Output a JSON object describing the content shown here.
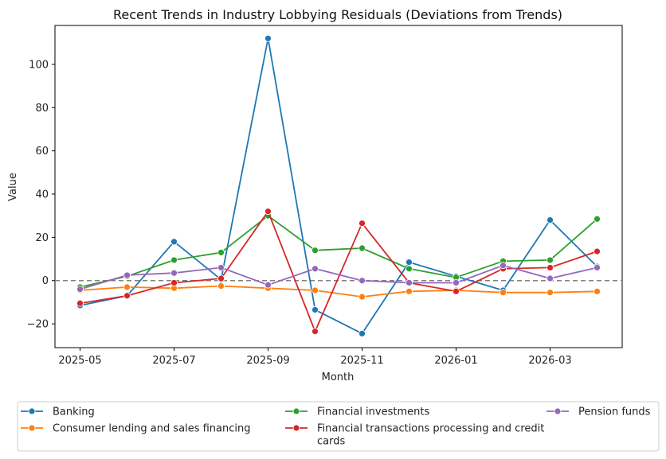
{
  "chart_data": {
    "type": "line",
    "title": "Recent Trends in Industry Lobbying Residuals (Deviations from Trends)",
    "xlabel": "Month",
    "ylabel": "Value",
    "x": [
      "2025-05",
      "2025-06",
      "2025-07",
      "2025-08",
      "2025-09",
      "2025-10",
      "2025-11",
      "2025-12",
      "2026-01",
      "2026-02",
      "2026-03",
      "2026-04"
    ],
    "x_ticks": [
      "2025-05",
      "2025-07",
      "2025-09",
      "2025-11",
      "2026-01",
      "2026-03"
    ],
    "y_ticks": [
      -20,
      0,
      20,
      40,
      60,
      80,
      100
    ],
    "ylim": [
      -31,
      118
    ],
    "reference_line": {
      "y": 0,
      "style": "dashed",
      "color": "#808080"
    },
    "grid": false,
    "legend_position": "bottom",
    "series": [
      {
        "name": "Banking",
        "color": "#1f77b4",
        "values": [
          -11.5,
          -7.0,
          18.0,
          0.5,
          112.0,
          -13.5,
          -24.5,
          8.5,
          2.0,
          -4.5,
          28.0,
          6.5
        ]
      },
      {
        "name": "Consumer lending and sales financing",
        "color": "#ff7f0e",
        "values": [
          -4.5,
          -3.0,
          -3.5,
          -2.5,
          -3.5,
          -4.5,
          -7.5,
          -5.0,
          -4.5,
          -5.5,
          -5.5,
          -5.0
        ]
      },
      {
        "name": "Financial investments",
        "color": "#2ca02c",
        "values": [
          -3.0,
          2.0,
          9.5,
          13.0,
          30.0,
          14.0,
          15.0,
          5.5,
          1.5,
          9.0,
          9.5,
          28.5
        ]
      },
      {
        "name": "Financial transactions processing and credit cards",
        "color": "#d62728",
        "values": [
          -10.5,
          -7.0,
          -1.0,
          1.0,
          32.0,
          -23.5,
          26.5,
          -1.0,
          -5.0,
          5.5,
          6.0,
          13.5
        ]
      },
      {
        "name": "Pension funds",
        "color": "#9467bd",
        "values": [
          -4.0,
          2.5,
          3.5,
          6.0,
          -2.0,
          5.5,
          0.0,
          -1.0,
          -1.0,
          7.0,
          1.0,
          6.0
        ]
      }
    ]
  }
}
